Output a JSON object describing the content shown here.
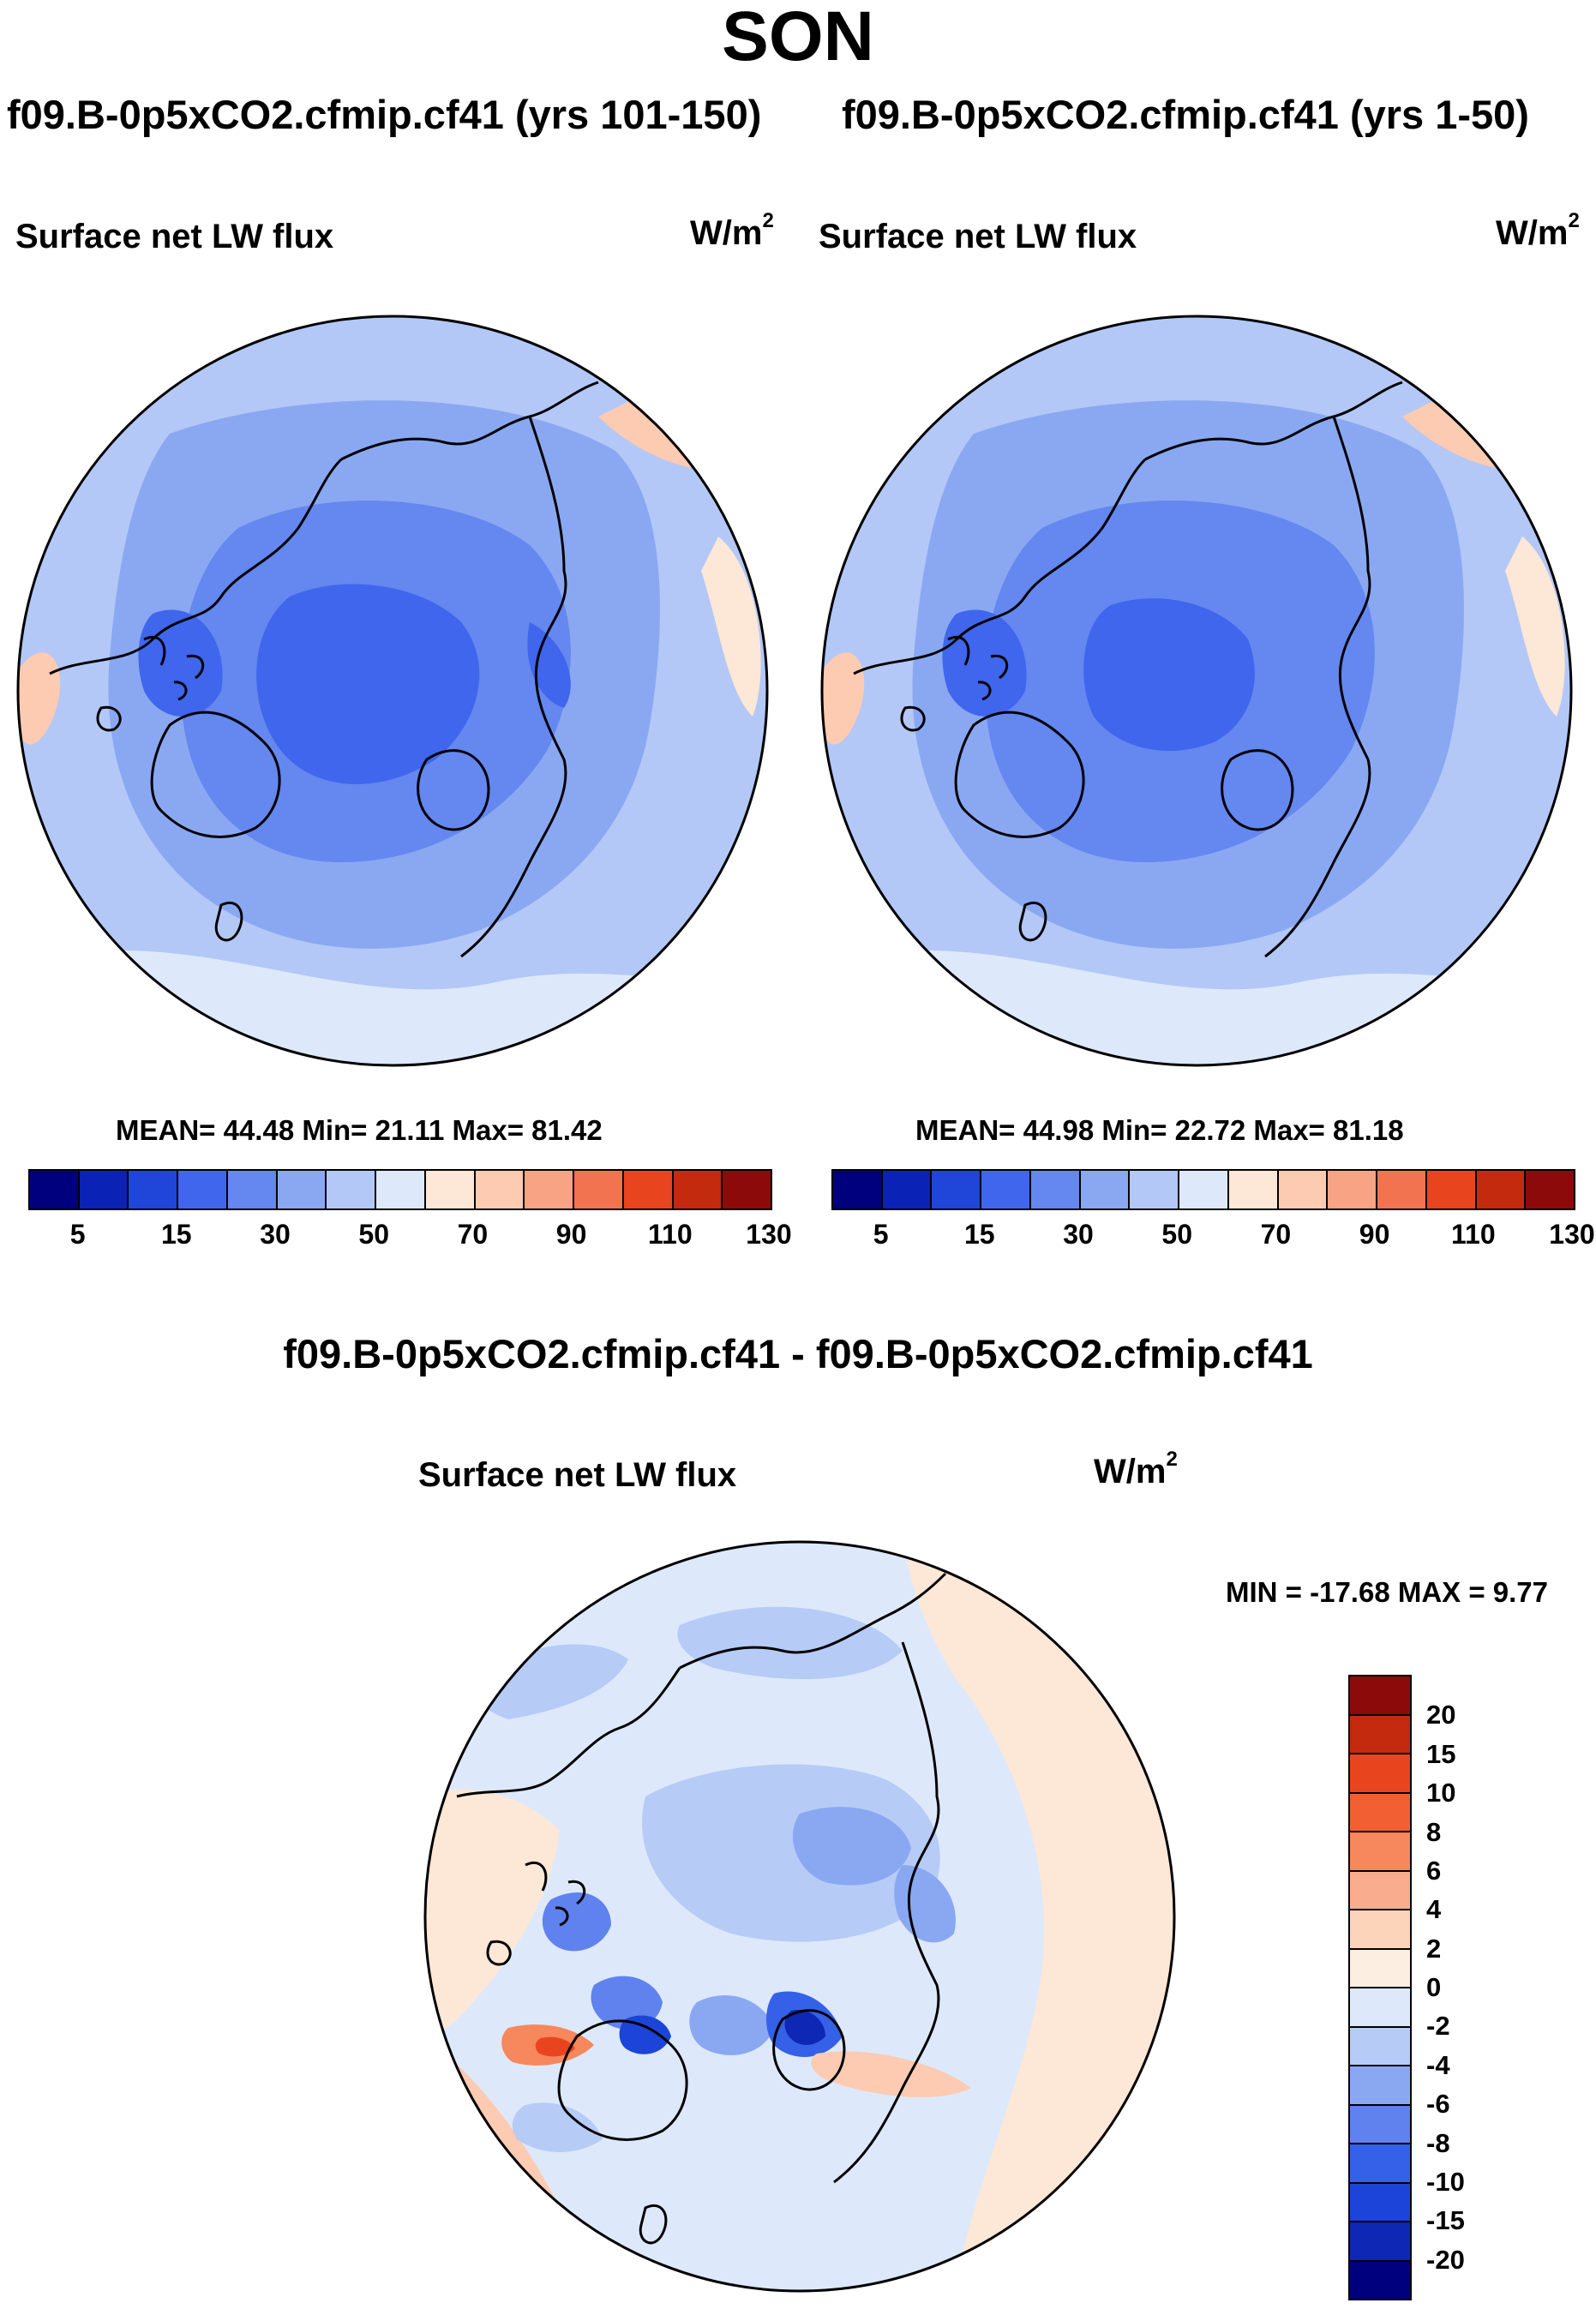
{
  "chart_data": {
    "type": "heatmap",
    "title": "SON",
    "projection": "polar-stereographic",
    "panels": [
      {
        "id": "left",
        "case": "f09.B-0p5xCO2.cfmip.cf41 (yrs 101-150)",
        "variable": "Surface net LW flux",
        "units_base": "W/m",
        "units_exp": "2",
        "stats_text": "MEAN=  44.48  Min=  21.11  Max=  81.42",
        "mean": 44.48,
        "min": 21.11,
        "max": 81.42
      },
      {
        "id": "right",
        "case": "f09.B-0p5xCO2.cfmip.cf41 (yrs 1-50)",
        "variable": "Surface net LW flux",
        "units_base": "W/m",
        "units_exp": "2",
        "stats_text": "MEAN=  44.98  Min=  22.72  Max=  81.18",
        "mean": 44.98,
        "min": 22.72,
        "max": 81.18
      },
      {
        "id": "diff",
        "case": "f09.B-0p5xCO2.cfmip.cf41 - f09.B-0p5xCO2.cfmip.cf41",
        "variable": "Surface net LW flux",
        "units_base": "W/m",
        "units_exp": "2",
        "stats_text": "MIN = -17.68 MAX =   9.77",
        "min": -17.68,
        "max": 9.77
      }
    ],
    "abs_colorbar": {
      "colors": [
        "#00007f",
        "#0a22b5",
        "#1f46d9",
        "#3f66ec",
        "#6487f0",
        "#8aa8f2",
        "#b3c8f7",
        "#dde9fb",
        "#fde7d6",
        "#fccbb2",
        "#f8a383",
        "#f27350",
        "#e8451f",
        "#c42a0e",
        "#8c0a0a"
      ],
      "tick_labels": [
        "5",
        "15",
        "30",
        "50",
        "70",
        "90",
        "110",
        "130"
      ]
    },
    "diff_colorbar": {
      "colors_top_to_bottom": [
        "#8c0a0a",
        "#c42a0e",
        "#e8451f",
        "#f25f33",
        "#f7875c",
        "#f9ad8e",
        "#fcd4ba",
        "#fdeee2",
        "#dde9fb",
        "#b6cbf6",
        "#8aa8f2",
        "#5f82ee",
        "#3560e8",
        "#1d44d8",
        "#0e27b4",
        "#00007f"
      ],
      "tick_labels_top_to_bottom": [
        "20",
        "15",
        "10",
        "8",
        "6",
        "4",
        "2",
        "0",
        "-2",
        "-4",
        "-6",
        "-8",
        "-10",
        "-15",
        "-20"
      ]
    }
  }
}
